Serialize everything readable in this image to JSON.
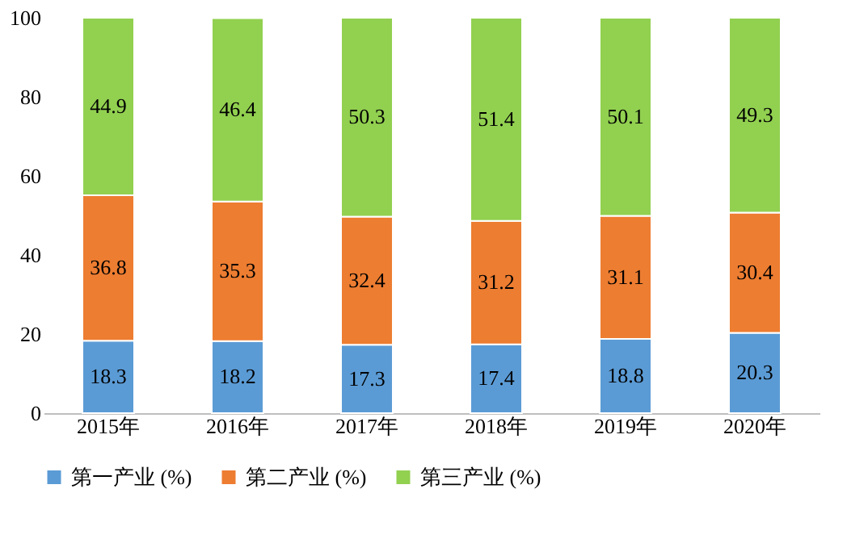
{
  "chart_data": {
    "type": "bar",
    "stacked": true,
    "data_labels": true,
    "legend": "bottom",
    "grid": false,
    "categories": [
      "2015年",
      "2016年",
      "2017年",
      "2018年",
      "2019年",
      "2020年"
    ],
    "ylim": [
      0,
      100
    ],
    "yticks": [
      0,
      20,
      40,
      60,
      80,
      100
    ],
    "series": [
      {
        "name": "第一产业 (%)",
        "color": "#5b9bd5",
        "values": [
          18.3,
          18.2,
          17.3,
          17.4,
          18.8,
          20.3
        ]
      },
      {
        "name": "第二产业 (%)",
        "color": "#ed7d31",
        "values": [
          36.8,
          35.3,
          32.4,
          31.2,
          31.1,
          30.4
        ]
      },
      {
        "name": "第三产业 (%)",
        "color": "#92d050",
        "values": [
          44.9,
          46.4,
          50.3,
          51.4,
          50.1,
          49.3
        ]
      }
    ]
  }
}
